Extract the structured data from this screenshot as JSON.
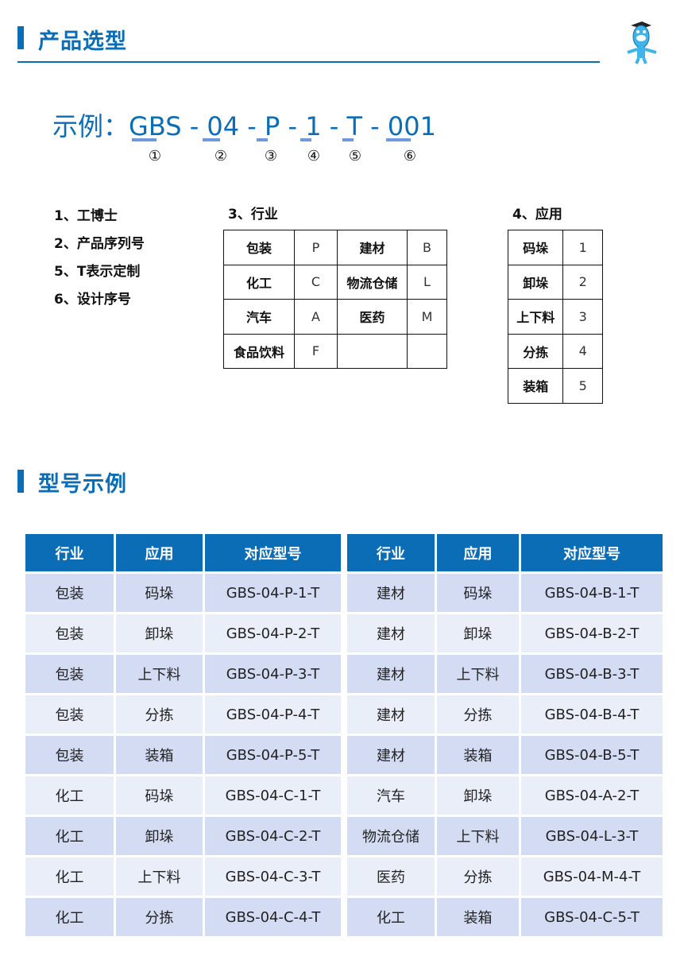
{
  "section1": {
    "title": "产品选型"
  },
  "example": {
    "label": "示例：",
    "parts": [
      "GBS",
      "04",
      "P",
      "1",
      "T",
      "001"
    ],
    "sep": "-",
    "markers": [
      "①",
      "②",
      "③",
      "④",
      "⑤",
      "⑥"
    ]
  },
  "legend": [
    "1、工博士",
    "2、产品序列号",
    "5、T表示定制",
    "6、设计序号"
  ],
  "industry": {
    "title": "3、行业",
    "rows": [
      [
        "包装",
        "P",
        "建材",
        "B"
      ],
      [
        "化工",
        "C",
        "物流仓储",
        "L"
      ],
      [
        "汽车",
        "A",
        "医药",
        "M"
      ],
      [
        "食品饮料",
        "F",
        "",
        ""
      ]
    ]
  },
  "application": {
    "title": "4、应用",
    "rows": [
      [
        "码垛",
        "1"
      ],
      [
        "卸垛",
        "2"
      ],
      [
        "上下料",
        "3"
      ],
      [
        "分拣",
        "4"
      ],
      [
        "装箱",
        "5"
      ]
    ]
  },
  "section2": {
    "title": "型号示例"
  },
  "models": {
    "headers": [
      "行业",
      "应用",
      "对应型号"
    ],
    "left": [
      [
        "包装",
        "码垛",
        "GBS-04-P-1-T"
      ],
      [
        "包装",
        "卸垛",
        "GBS-04-P-2-T"
      ],
      [
        "包装",
        "上下料",
        "GBS-04-P-3-T"
      ],
      [
        "包装",
        "分拣",
        "GBS-04-P-4-T"
      ],
      [
        "包装",
        "装箱",
        "GBS-04-P-5-T"
      ],
      [
        "化工",
        "码垛",
        "GBS-04-C-1-T"
      ],
      [
        "化工",
        "卸垛",
        "GBS-04-C-2-T"
      ],
      [
        "化工",
        "上下料",
        "GBS-04-C-3-T"
      ],
      [
        "化工",
        "分拣",
        "GBS-04-C-4-T"
      ]
    ],
    "right": [
      [
        "建材",
        "码垛",
        "GBS-04-B-1-T"
      ],
      [
        "建材",
        "卸垛",
        "GBS-04-B-2-T"
      ],
      [
        "建材",
        "上下料",
        "GBS-04-B-3-T"
      ],
      [
        "建材",
        "分拣",
        "GBS-04-B-4-T"
      ],
      [
        "建材",
        "装箱",
        "GBS-04-B-5-T"
      ],
      [
        "汽车",
        "卸垛",
        "GBS-04-A-2-T"
      ],
      [
        "物流仓储",
        "上下料",
        "GBS-04-L-3-T"
      ],
      [
        "医药",
        "分拣",
        "GBS-04-M-4-T"
      ],
      [
        "化工",
        "装箱",
        "GBS-04-C-5-T"
      ]
    ]
  },
  "colors": {
    "accent": "#0a6db6",
    "row_odd": "#d3dcf3",
    "row_even": "#e9eef9",
    "underline": "#6f98de"
  }
}
